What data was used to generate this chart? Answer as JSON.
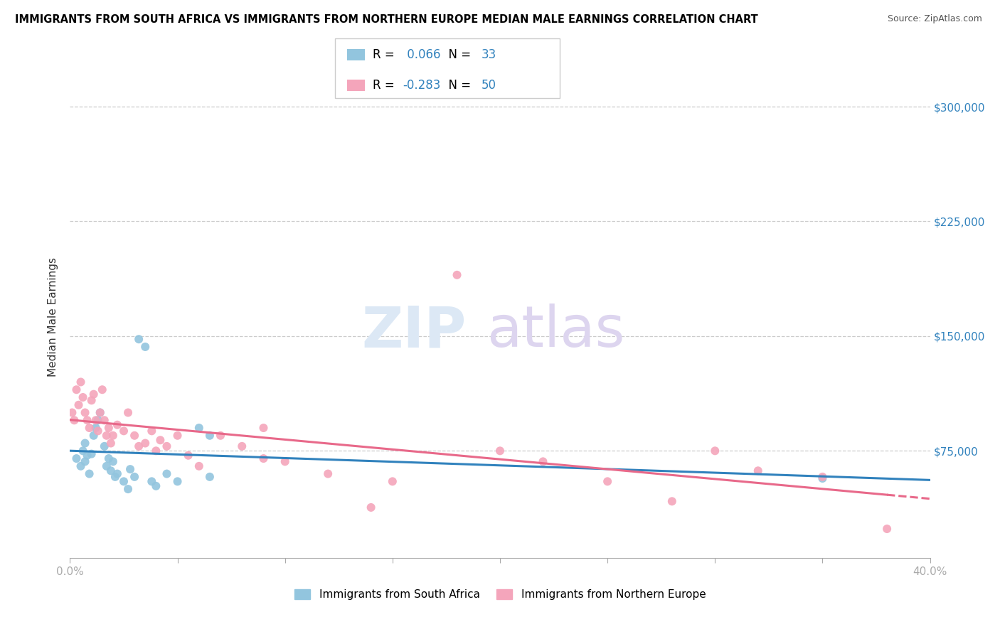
{
  "title": "IMMIGRANTS FROM SOUTH AFRICA VS IMMIGRANTS FROM NORTHERN EUROPE MEDIAN MALE EARNINGS CORRELATION CHART",
  "source": "Source: ZipAtlas.com",
  "ylabel": "Median Male Earnings",
  "r1": 0.066,
  "n1": 33,
  "r2": -0.283,
  "n2": 50,
  "color1": "#92c5de",
  "color2": "#f4a5bb",
  "line1_color": "#3182bd",
  "line2_color": "#e8698a",
  "xmin": 0.0,
  "xmax": 0.4,
  "ymin": 5000,
  "ymax": 320000,
  "yticks": [
    75000,
    150000,
    225000,
    300000
  ],
  "sa_x": [
    0.003,
    0.005,
    0.006,
    0.007,
    0.007,
    0.008,
    0.009,
    0.01,
    0.011,
    0.012,
    0.013,
    0.014,
    0.016,
    0.017,
    0.018,
    0.019,
    0.02,
    0.021,
    0.022,
    0.025,
    0.027,
    0.028,
    0.03,
    0.032,
    0.035,
    0.038,
    0.04,
    0.045,
    0.05,
    0.06,
    0.065,
    0.065,
    0.35
  ],
  "sa_y": [
    70000,
    65000,
    75000,
    80000,
    68000,
    72000,
    60000,
    73000,
    85000,
    90000,
    95000,
    100000,
    78000,
    65000,
    70000,
    62000,
    68000,
    58000,
    60000,
    55000,
    50000,
    63000,
    58000,
    148000,
    143000,
    55000,
    52000,
    60000,
    55000,
    90000,
    85000,
    58000,
    57000
  ],
  "ne_x": [
    0.001,
    0.002,
    0.003,
    0.004,
    0.005,
    0.006,
    0.007,
    0.008,
    0.009,
    0.01,
    0.011,
    0.012,
    0.013,
    0.014,
    0.015,
    0.016,
    0.017,
    0.018,
    0.019,
    0.02,
    0.022,
    0.025,
    0.027,
    0.03,
    0.032,
    0.035,
    0.038,
    0.04,
    0.042,
    0.045,
    0.05,
    0.055,
    0.06,
    0.07,
    0.08,
    0.09,
    0.1,
    0.12,
    0.15,
    0.18,
    0.2,
    0.22,
    0.25,
    0.28,
    0.3,
    0.32,
    0.35,
    0.38,
    0.09,
    0.14
  ],
  "ne_y": [
    100000,
    95000,
    115000,
    105000,
    120000,
    110000,
    100000,
    95000,
    90000,
    108000,
    112000,
    95000,
    88000,
    100000,
    115000,
    95000,
    85000,
    90000,
    80000,
    85000,
    92000,
    88000,
    100000,
    85000,
    78000,
    80000,
    88000,
    75000,
    82000,
    78000,
    85000,
    72000,
    65000,
    85000,
    78000,
    70000,
    68000,
    60000,
    55000,
    190000,
    75000,
    68000,
    55000,
    42000,
    75000,
    62000,
    58000,
    24000,
    90000,
    38000
  ]
}
